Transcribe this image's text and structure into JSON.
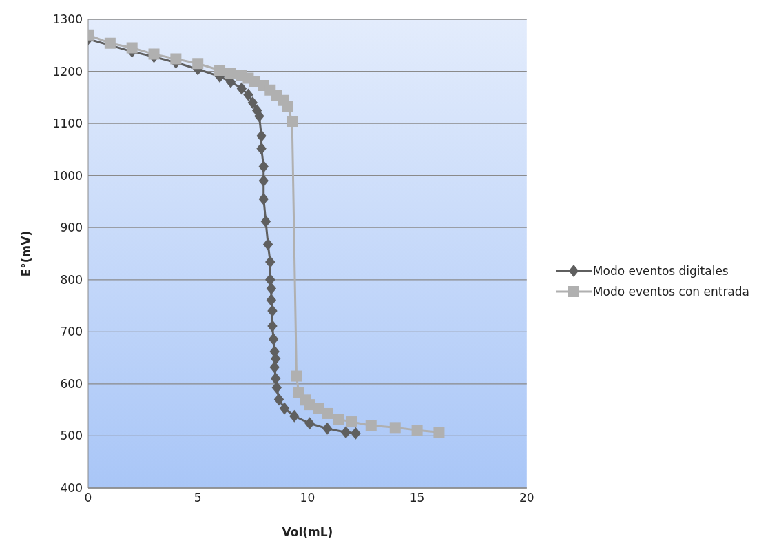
{
  "chart_data": {
    "type": "line",
    "xlabel": "Vol(mL)",
    "ylabel": "E°(mV)",
    "xlim": [
      0,
      20
    ],
    "xticks": [
      0,
      5,
      10,
      15,
      20
    ],
    "ylim": [
      400,
      1300
    ],
    "yticks": [
      400,
      500,
      600,
      700,
      800,
      900,
      1000,
      1100,
      1200,
      1300
    ],
    "grid": "y",
    "legend": "right",
    "series": [
      {
        "name": "Modo eventos digitales",
        "color": "#5f5f5f",
        "marker": "diamond",
        "x": [
          0,
          1,
          2,
          3,
          4,
          5,
          6,
          6.5,
          7,
          7.3,
          7.5,
          7.7,
          7.8,
          7.9,
          7.9,
          8.0,
          8.0,
          8.0,
          8.1,
          8.2,
          8.3,
          8.3,
          8.35,
          8.35,
          8.4,
          8.4,
          8.45,
          8.5,
          8.55,
          8.5,
          8.55,
          8.6,
          8.7,
          8.95,
          9.4,
          10.1,
          10.9,
          11.75,
          12.2
        ],
        "values": [
          1262,
          null,
          1238,
          1228,
          1217,
          1204,
          1190,
          1180,
          1167,
          1155,
          1140,
          1125,
          1114,
          1076,
          1052,
          1017,
          990,
          955,
          912,
          868,
          834,
          800,
          783,
          761,
          740,
          711,
          686,
          662,
          648,
          632,
          610,
          593,
          570,
          553,
          538,
          524,
          514,
          507,
          505
        ]
      },
      {
        "name": "Modo eventos con entrada",
        "color": "#b0b0b0",
        "marker": "square",
        "x": [
          0,
          1,
          2,
          3,
          4,
          5,
          6,
          6.5,
          7,
          7.3,
          7.6,
          8,
          8.3,
          8.6,
          8.9,
          9.1,
          9.3,
          9.5,
          9.6,
          9.9,
          10.1,
          10.5,
          10.9,
          11.4,
          12,
          12.9,
          14,
          15,
          16
        ],
        "values": [
          1270,
          1254,
          1245,
          1233,
          1224,
          1215,
          1202,
          1196,
          1192,
          1187,
          1181,
          1173,
          1164,
          1153,
          1144,
          1133,
          1104,
          615,
          583,
          569,
          560,
          553,
          543,
          532,
          527,
          520,
          516,
          511,
          507
        ]
      }
    ]
  }
}
